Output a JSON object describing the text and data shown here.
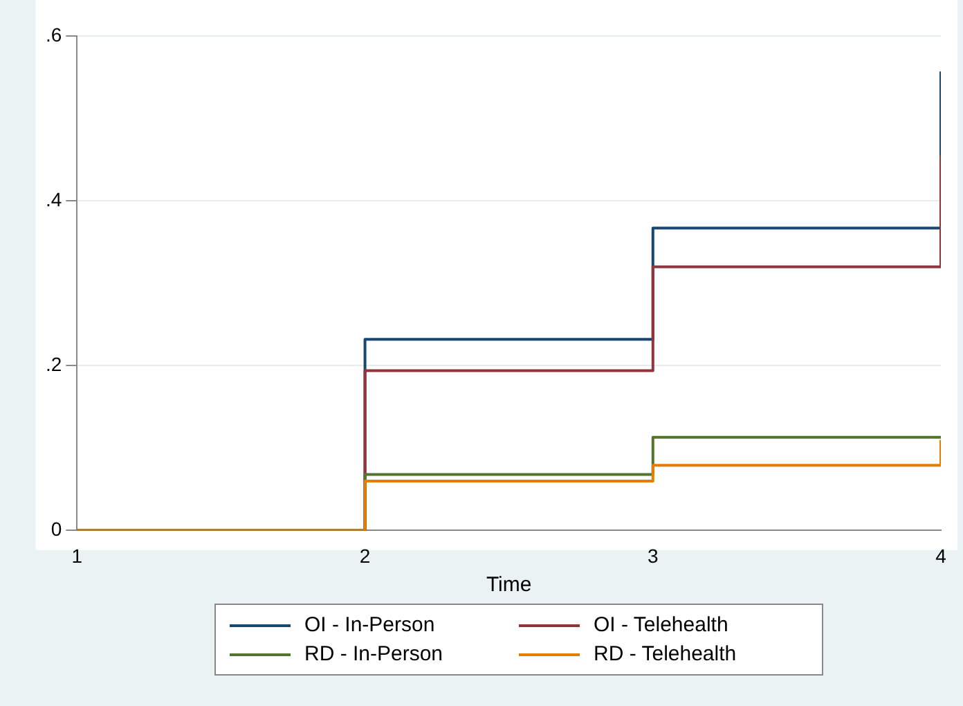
{
  "chart_data": {
    "type": "step",
    "xlabel": "Time",
    "x": [
      1,
      2,
      3,
      4
    ],
    "series": [
      {
        "name": "OI - In-Person",
        "color": "#1a476f",
        "values": [
          0,
          0.232,
          0.367,
          0.557
        ]
      },
      {
        "name": "OI - Telehealth",
        "color": "#90353b",
        "values": [
          0,
          0.194,
          0.32,
          0.455
        ]
      },
      {
        "name": "RD - In-Person",
        "color": "#55752f",
        "values": [
          0,
          0.068,
          0.113,
          0.113
        ]
      },
      {
        "name": "RD - Telehealth",
        "color": "#e37e00",
        "values": [
          0,
          0.06,
          0.079,
          0.11
        ]
      }
    ],
    "xlim": [
      1,
      4
    ],
    "xticks": [
      1,
      2,
      3,
      4
    ],
    "ylim": [
      0,
      0.6
    ],
    "yticks": [
      {
        "value": 0,
        "label": "0"
      },
      {
        "value": 0.2,
        "label": ".2"
      },
      {
        "value": 0.4,
        "label": ".4"
      },
      {
        "value": 0.6,
        "label": ".6"
      }
    ],
    "grid": "y",
    "legend": "bottom",
    "marker": "none",
    "line_style": "solid"
  }
}
